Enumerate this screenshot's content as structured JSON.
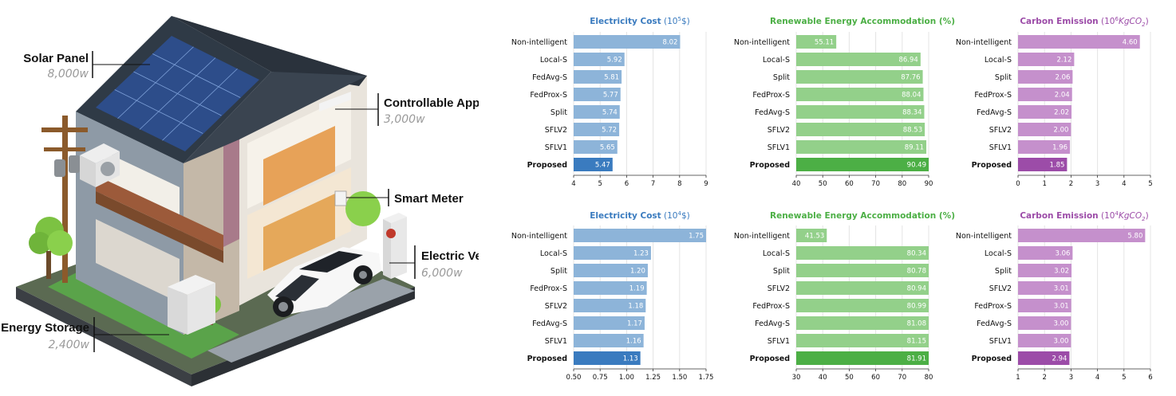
{
  "illustration": {
    "callouts": [
      {
        "label": "Solar Panel",
        "value": "8,000w"
      },
      {
        "label": "Controllable Appliance",
        "value": "3,000w"
      },
      {
        "label": "Smart Meter",
        "value": ""
      },
      {
        "label": "Electric Vehicle",
        "value": "6,000w"
      },
      {
        "label": "Energy Storage",
        "value": "2,400w"
      }
    ]
  },
  "colors": {
    "blue": "#8db4d9",
    "blue_dark": "#3a7bbf",
    "blue_title": "#3a7bbf",
    "green": "#93d08a",
    "green_dark": "#4caf45",
    "green_title": "#4caf45",
    "purple": "#c590cc",
    "purple_dark": "#9c4ca8",
    "purple_title": "#9c4ca8"
  },
  "chart_data": [
    {
      "type": "bar",
      "orientation": "horizontal",
      "title": "Electricity Cost",
      "title_unit": "10⁵$",
      "title_unit_base": "10",
      "title_unit_exp": "5",
      "title_unit_rest": "$",
      "color": "blue",
      "categories": [
        "Non-intelligent",
        "Local-S",
        "FedAvg-S",
        "FedProx-S",
        "Split",
        "SFLV2",
        "SFLV1",
        "Proposed"
      ],
      "values": [
        8.02,
        5.92,
        5.81,
        5.77,
        5.74,
        5.72,
        5.65,
        5.47
      ],
      "value_labels": [
        "8.02",
        "5.92",
        "5.81",
        "5.77",
        "5.74",
        "5.72",
        "5.65",
        "5.47"
      ],
      "xlim": [
        4,
        9
      ],
      "ticks": [
        4,
        5,
        6,
        7,
        8,
        9
      ],
      "tick_labels": [
        "4",
        "5",
        "6",
        "7",
        "8",
        "9"
      ],
      "grid": true
    },
    {
      "type": "bar",
      "orientation": "horizontal",
      "title": "Renewable Energy Accommodation (%)",
      "title_unit": "",
      "color": "green",
      "categories": [
        "Non-intelligent",
        "Local-S",
        "Split",
        "FedProx-S",
        "FedAvg-S",
        "SFLV2",
        "SFLV1",
        "Proposed"
      ],
      "values": [
        55.11,
        86.94,
        87.76,
        88.04,
        88.34,
        88.53,
        89.11,
        90.49
      ],
      "value_labels": [
        "55.11",
        "86.94",
        "87.76",
        "88.04",
        "88.34",
        "88.53",
        "89.11",
        "90.49"
      ],
      "xlim": [
        40,
        90
      ],
      "ticks": [
        40,
        50,
        60,
        70,
        80,
        90
      ],
      "tick_labels": [
        "40",
        "50",
        "60",
        "70",
        "80",
        "90"
      ],
      "grid": true
    },
    {
      "type": "bar",
      "orientation": "horizontal",
      "title": "Carbon Emission",
      "title_unit": "10⁶KgCO₂",
      "title_unit_base": "10",
      "title_unit_exp": "6",
      "title_unit_rest": "KgCO",
      "title_unit_sub": "2",
      "color": "purple",
      "categories": [
        "Non-intelligent",
        "Local-S",
        "Split",
        "FedProx-S",
        "FedAvg-S",
        "SFLV2",
        "SFLV1",
        "Proposed"
      ],
      "values": [
        4.6,
        2.12,
        2.06,
        2.04,
        2.02,
        2.0,
        1.96,
        1.85
      ],
      "value_labels": [
        "4.60",
        "2.12",
        "2.06",
        "2.04",
        "2.02",
        "2.00",
        "1.96",
        "1.85"
      ],
      "xlim": [
        0,
        5
      ],
      "ticks": [
        0,
        1,
        2,
        3,
        4,
        5
      ],
      "tick_labels": [
        "0",
        "1",
        "2",
        "3",
        "4",
        "5"
      ],
      "grid": true
    },
    {
      "type": "bar",
      "orientation": "horizontal",
      "title": "Electricity Cost",
      "title_unit": "10⁴$",
      "title_unit_base": "10",
      "title_unit_exp": "4",
      "title_unit_rest": "$",
      "color": "blue",
      "categories": [
        "Non-intelligent",
        "Local-S",
        "Split",
        "FedProx-S",
        "SFLV2",
        "FedAvg-S",
        "SFLV1",
        "Proposed"
      ],
      "values": [
        1.75,
        1.23,
        1.2,
        1.19,
        1.18,
        1.17,
        1.16,
        1.13
      ],
      "value_labels": [
        "1.75",
        "1.23",
        "1.20",
        "1.19",
        "1.18",
        "1.17",
        "1.16",
        "1.13"
      ],
      "xlim": [
        0.5,
        1.75
      ],
      "ticks": [
        0.5,
        0.75,
        1.0,
        1.25,
        1.5,
        1.75
      ],
      "tick_labels": [
        "0.50",
        "0.75",
        "1.00",
        "1.25",
        "1.50",
        "1.75"
      ],
      "grid": true
    },
    {
      "type": "bar",
      "orientation": "horizontal",
      "title": "Renewable Energy Accommodation (%)",
      "title_unit": "",
      "color": "green",
      "categories": [
        "Non-intelligent",
        "Local-S",
        "Split",
        "SFLV2",
        "FedProx-S",
        "FedAvg-S",
        "SFLV1",
        "Proposed"
      ],
      "values": [
        41.53,
        80.34,
        80.78,
        80.94,
        80.99,
        81.08,
        81.15,
        81.91
      ],
      "value_labels": [
        "41.53",
        "80.34",
        "80.78",
        "80.94",
        "80.99",
        "81.08",
        "81.15",
        "81.91"
      ],
      "xlim": [
        30,
        80
      ],
      "ticks": [
        30,
        40,
        50,
        60,
        70,
        80
      ],
      "tick_labels": [
        "30",
        "40",
        "50",
        "60",
        "70",
        "80"
      ],
      "grid": true
    },
    {
      "type": "bar",
      "orientation": "horizontal",
      "title": "Carbon Emission",
      "title_unit": "10⁴KgCO₂",
      "title_unit_base": "10",
      "title_unit_exp": "4",
      "title_unit_rest": "KgCO",
      "title_unit_sub": "2",
      "color": "purple",
      "categories": [
        "Non-intelligent",
        "Local-S",
        "Split",
        "SFLV2",
        "FedProx-S",
        "FedAvg-S",
        "SFLV1",
        "Proposed"
      ],
      "values": [
        5.8,
        3.06,
        3.02,
        3.01,
        3.01,
        3.0,
        3.0,
        2.94
      ],
      "value_labels": [
        "5.80",
        "3.06",
        "3.02",
        "3.01",
        "3.01",
        "3.00",
        "3.00",
        "2.94"
      ],
      "xlim": [
        1,
        6
      ],
      "ticks": [
        1,
        2,
        3,
        4,
        5,
        6
      ],
      "tick_labels": [
        "1",
        "2",
        "3",
        "4",
        "5",
        "6"
      ],
      "grid": true
    }
  ]
}
